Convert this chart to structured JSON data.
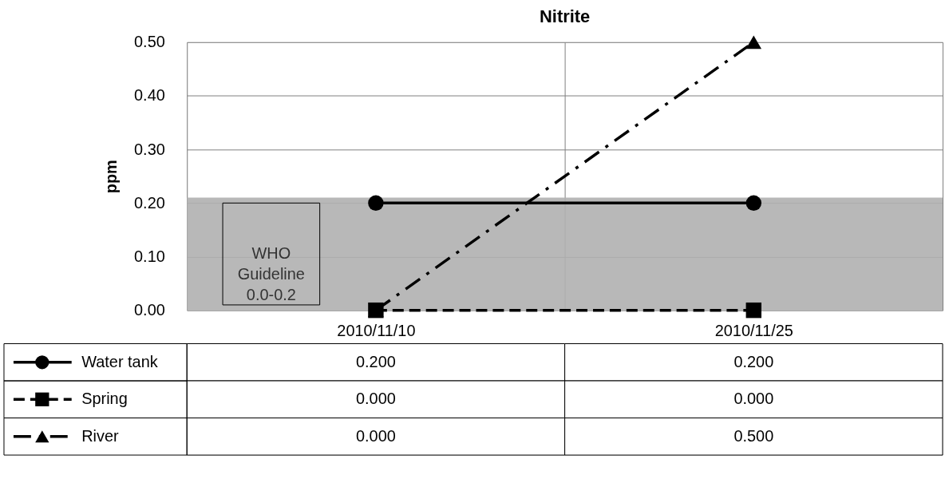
{
  "chart_data": {
    "type": "line",
    "title": "Nitrite",
    "ylabel": "ppm",
    "categories": [
      "2010/11/10",
      "2010/11/25"
    ],
    "series": [
      {
        "name": "Water tank",
        "color": "#000000",
        "values": [
          0.2,
          0.2
        ],
        "value_labels": [
          "0.200",
          "0.200"
        ],
        "marker": "circle",
        "line_style": "solid"
      },
      {
        "name": "Spring",
        "color": "#000000",
        "values": [
          0.0,
          0.0
        ],
        "value_labels": [
          "0.000",
          "0.000"
        ],
        "marker": "square",
        "line_style": "dashed"
      },
      {
        "name": "River",
        "color": "#000000",
        "values": [
          0.0,
          0.5
        ],
        "value_labels": [
          "0.000",
          "0.500"
        ],
        "marker": "triangle",
        "line_style": "dotted"
      }
    ],
    "ylim": [
      0,
      0.5
    ],
    "yticks": [
      {
        "value": 0,
        "label": "0.00"
      },
      {
        "value": 0.1,
        "label": "0.10"
      },
      {
        "value": 0.2,
        "label": "0.20"
      },
      {
        "value": 0.3,
        "label": "0.30"
      },
      {
        "value": 0.4,
        "label": "0.40"
      },
      {
        "value": 0.5,
        "label": "0.50"
      }
    ],
    "bands": [
      {
        "axis": "y",
        "from": 0,
        "to": 0.21,
        "label": "WHO Guideline 0.0-0.2",
        "color": "#b0b0b0"
      }
    ],
    "grid": true,
    "legend": "bottom"
  }
}
